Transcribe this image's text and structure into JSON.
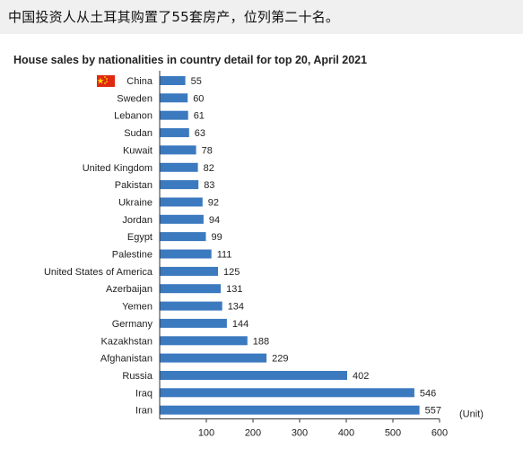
{
  "caption": "中国投资人从土耳其购置了55套房产，位列第二十名。",
  "chart_data": {
    "type": "bar",
    "orientation": "horizontal",
    "title": "House sales by nationalities in country detail for top 20, April 2021",
    "categories": [
      "China",
      "Sweden",
      "Lebanon",
      "Sudan",
      "Kuwait",
      "United Kingdom",
      "Pakistan",
      "Ukraine",
      "Jordan",
      "Egypt",
      "Palestine",
      "United States of America",
      "Azerbaijan",
      "Yemen",
      "Germany",
      "Kazakhstan",
      "Afghanistan",
      "Russia",
      "Iraq",
      "Iran"
    ],
    "values": [
      55,
      60,
      61,
      63,
      78,
      82,
      83,
      92,
      94,
      99,
      111,
      125,
      131,
      134,
      144,
      188,
      229,
      402,
      546,
      557
    ],
    "xticks": [
      100,
      200,
      300,
      400,
      500,
      600
    ],
    "xlim": [
      0,
      600
    ],
    "unit_label": "(Unit)",
    "bar_color": "#3c7abf",
    "flag_icon": "china-flag-icon",
    "grid": false,
    "legend": "none"
  }
}
